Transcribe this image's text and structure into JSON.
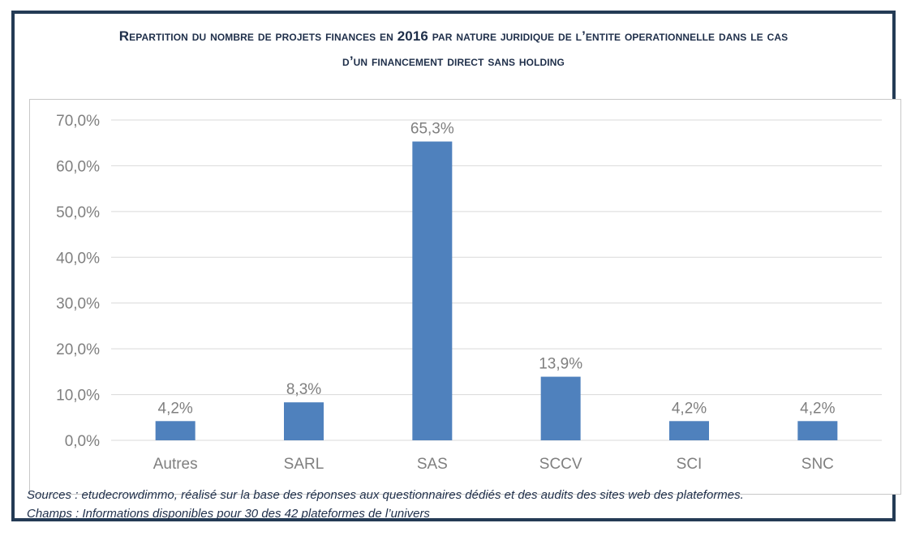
{
  "title_line1": "Repartition du nombre de projets finances en 2016 par nature juridique de l’entite operationnelle dans le cas",
  "title_line2": "d’un financement direct sans holding",
  "sources": "Sources : etudecrowdimmo, réalisé sur la base des réponses aux questionnaires dédiés et des audits des sites web des plateformes.",
  "champs": "Champs : Informations disponibles pour 30 des 42 plateformes de l’univers",
  "colors": {
    "bar": "#4f81bd",
    "grid": "#d9d9d9",
    "axis_text": "#7f7f7f",
    "border": "#243b55"
  },
  "chart_data": {
    "type": "bar",
    "categories": [
      "Autres",
      "SARL",
      "SAS",
      "SCCV",
      "SCI",
      "SNC"
    ],
    "values": [
      4.2,
      8.3,
      65.3,
      13.9,
      4.2,
      4.2
    ],
    "value_labels": [
      "4,2%",
      "8,3%",
      "65,3%",
      "13,9%",
      "4,2%",
      "4,2%"
    ],
    "ylim": [
      0,
      70
    ],
    "yticks": [
      0,
      10,
      20,
      30,
      40,
      50,
      60,
      70
    ],
    "ytick_labels": [
      "0,0%",
      "10,0%",
      "20,0%",
      "30,0%",
      "40,0%",
      "50,0%",
      "60,0%",
      "70,0%"
    ],
    "grid": true
  }
}
